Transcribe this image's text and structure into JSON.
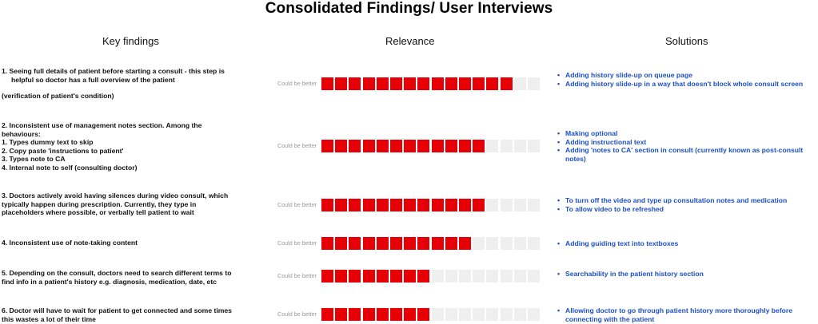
{
  "title": "Consolidated Findings/ User Interviews",
  "columns": {
    "findings": "Key findings",
    "relevance": "Relevance",
    "solutions": "Solutions"
  },
  "rating_label": "Could be better",
  "rating_scale": 16,
  "colors": {
    "filled": "#e60005",
    "empty": "#efefef",
    "solution_text": "#1d4fc4"
  },
  "rows": [
    {
      "finding_lines": [
        "1. Seeing full details of patient before starting a consult - this step is",
        "     helpful so doctor has a full overview of the patient",
        "",
        "(verification of patient's condition)"
      ],
      "relevance": 14,
      "solutions": [
        "Adding history slide-up on queue page",
        "Adding history slide-up in a way that doesn't block whole consult screen"
      ]
    },
    {
      "finding_lines": [
        "2. Inconsistent use of management notes section. Among the",
        "behaviours:",
        "1. Types dummy text to skip",
        "2. Copy paste 'instructions to patient'",
        "3. Types note to CA",
        "4. Internal note to self (consulting doctor)"
      ],
      "relevance": 12,
      "solutions": [
        "Making optional",
        "Adding instructional text",
        "Adding 'notes to CA' section in consult (currently known as post-consult notes)"
      ]
    },
    {
      "finding_lines": [
        "3. Doctors actively avoid having silences during video consult, which",
        "typically happen during prescription. Currently, they type in",
        "placeholders where possible, or verbally tell patient to wait"
      ],
      "relevance": 12,
      "solutions": [
        "To turn off the video and type up consultation notes and medication",
        "To allow video to be refreshed"
      ]
    },
    {
      "finding_lines": [
        "4. Inconsistent use of note-taking content"
      ],
      "relevance": 11,
      "solutions": [
        "Adding guiding text into textboxes"
      ]
    },
    {
      "finding_lines": [
        "5. Depending on the consult, doctors need to search different terms to",
        "find info in a patient's history e.g. diagnosis, medication, date, etc"
      ],
      "relevance": 8,
      "solutions": [
        "Searchability in the patient history section"
      ]
    },
    {
      "finding_lines": [
        "6. Doctor will have to wait for patient to get connected and some times",
        "this wastes a lot of their time"
      ],
      "relevance": 8,
      "solutions": [
        "Allowing doctor to go through patient history more thoroughly before connecting with the patient"
      ]
    }
  ]
}
